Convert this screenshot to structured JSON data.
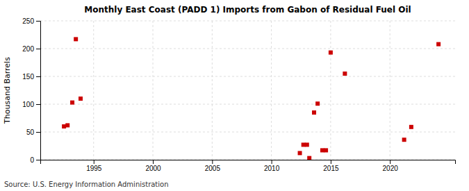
{
  "chart_data": {
    "type": "scatter",
    "title": "Monthly East Coast (PADD 1) Imports from Gabon of Residual Fuel Oil",
    "ylabel": "Thousand Barrels",
    "source": "Source: U.S. Energy Information Administration",
    "color": "#cc0000",
    "marker": "square",
    "grid": true,
    "xlim": [
      1990.5,
      2025.5
    ],
    "xticks": [
      1995,
      2000,
      2005,
      2010,
      2015,
      2020
    ],
    "ylim": [
      0,
      250
    ],
    "yticks": [
      0,
      50,
      100,
      150,
      200,
      250
    ],
    "x": [
      1992.5,
      1992.8,
      1993.2,
      1993.5,
      1993.9,
      2012.4,
      2012.7,
      2013.0,
      2013.2,
      2013.6,
      2013.9,
      2014.3,
      2014.6,
      2015.0,
      2016.2,
      2021.2,
      2021.8,
      2024.1
    ],
    "values": [
      60,
      62,
      103,
      217,
      110,
      12,
      27,
      27,
      3,
      85,
      101,
      17,
      17,
      193,
      155,
      36,
      59,
      208
    ]
  }
}
